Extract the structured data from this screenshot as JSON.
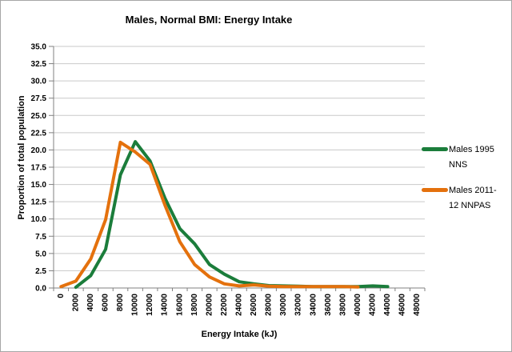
{
  "title": "Males, Normal BMI: Energy Intake",
  "axes": {
    "y_label": "Proportion of total population",
    "x_label": "Energy Intake (kJ)"
  },
  "legend": {
    "items": [
      {
        "name": "Males 1995 NNS",
        "lines": [
          "Males 1995",
          "NNS"
        ],
        "color": "#1B7D3B"
      },
      {
        "name": "Males 2011-12 NNPAS",
        "lines": [
          "Males 2011-",
          "12 NNPAS"
        ],
        "color": "#E4710D"
      }
    ]
  },
  "colors": {
    "gridline": "#c9c9c9",
    "axis": "#808080",
    "tick": "#808080",
    "text": "#000000",
    "series_green": "#1B7D3B",
    "series_orange": "#E4710D"
  },
  "chart_data": {
    "type": "line",
    "title": "Males, Normal BMI: Energy Intake",
    "xlabel": "Energy Intake (kJ)",
    "ylabel": "Proportion of total population",
    "ylim": [
      0,
      35
    ],
    "ytick_step": 2.5,
    "ytick_decimals": 1,
    "grid": "horizontal",
    "legend_position": "right",
    "categories": [
      0,
      2000,
      4000,
      6000,
      8000,
      10000,
      12000,
      14000,
      16000,
      18000,
      20000,
      22000,
      24000,
      26000,
      28000,
      30000,
      32000,
      34000,
      36000,
      38000,
      40000,
      42000,
      44000,
      46000,
      48000
    ],
    "series": [
      {
        "name": "Males 1995 NNS",
        "color": "#1B7D3B",
        "values": [
          null,
          0.1,
          1.8,
          5.6,
          16.4,
          21.2,
          18.4,
          13.0,
          8.6,
          6.4,
          3.4,
          2.0,
          0.9,
          0.6,
          0.35,
          0.3,
          0.25,
          0.2,
          0.2,
          0.2,
          0.2,
          0.3,
          0.2,
          null,
          null
        ]
      },
      {
        "name": "Males 2011-12 NNPAS",
        "color": "#E4710D",
        "values": [
          0.2,
          1.0,
          4.2,
          9.9,
          21.1,
          19.7,
          17.9,
          12.0,
          6.7,
          3.4,
          1.6,
          0.6,
          0.3,
          0.45,
          0.25,
          0.2,
          0.2,
          0.2,
          0.2,
          0.2,
          0.15,
          null,
          null,
          null,
          null
        ]
      }
    ]
  }
}
